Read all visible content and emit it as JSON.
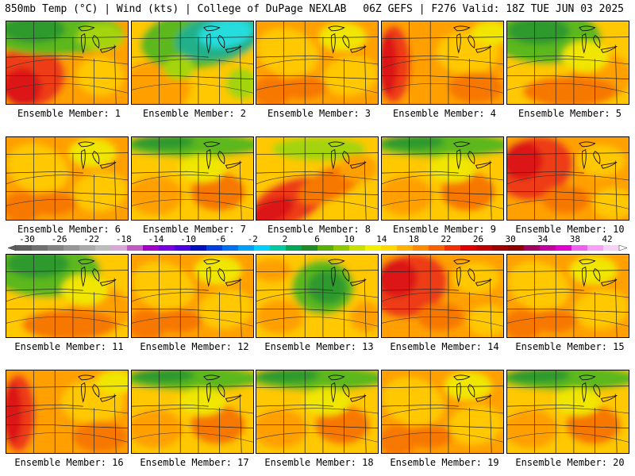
{
  "header": {
    "left": "850mb Temp (°C) | Wind (kts) | College of DuPage NEXLAB",
    "right": "06Z GEFS | F276 Valid: 18Z TUE JUN 03 2025"
  },
  "label_prefix": "Ensemble Member:",
  "members": [
    {
      "number": 1,
      "label": "Ensemble Member: 1",
      "pattern": "hot-west-cool-north"
    },
    {
      "number": 2,
      "label": "Ensemble Member: 2",
      "pattern": "cool-north-cyan"
    },
    {
      "number": 3,
      "label": "Ensemble Member: 3",
      "pattern": "warm-uniform"
    },
    {
      "number": 4,
      "label": "Ensemble Member: 4",
      "pattern": "hot-west-edge"
    },
    {
      "number": 5,
      "label": "Ensemble Member: 5",
      "pattern": "cool-northwest"
    },
    {
      "number": 6,
      "label": "Ensemble Member: 6",
      "pattern": "warm-uniform"
    },
    {
      "number": 7,
      "label": "Ensemble Member: 7",
      "pattern": "warm-green-north"
    },
    {
      "number": 8,
      "label": "Ensemble Member: 8",
      "pattern": "hot-southwest"
    },
    {
      "number": 9,
      "label": "Ensemble Member: 9",
      "pattern": "warm-green-north"
    },
    {
      "number": 10,
      "label": "Ensemble Member: 10",
      "pattern": "hot-west"
    },
    {
      "number": 11,
      "label": "Ensemble Member: 11",
      "pattern": "cool-northwest"
    },
    {
      "number": 12,
      "label": "Ensemble Member: 12",
      "pattern": "warm-uniform"
    },
    {
      "number": 13,
      "label": "Ensemble Member: 13",
      "pattern": "cool-center"
    },
    {
      "number": 14,
      "label": "Ensemble Member: 14",
      "pattern": "hot-west"
    },
    {
      "number": 15,
      "label": "Ensemble Member: 15",
      "pattern": "warm-uniform"
    },
    {
      "number": 16,
      "label": "Ensemble Member: 16",
      "pattern": "hot-west-edge"
    },
    {
      "number": 17,
      "label": "Ensemble Member: 17",
      "pattern": "warm-green-north"
    },
    {
      "number": 18,
      "label": "Ensemble Member: 18",
      "pattern": "warm-green-north"
    },
    {
      "number": 19,
      "label": "Ensemble Member: 19",
      "pattern": "warm-uniform"
    },
    {
      "number": 20,
      "label": "Ensemble Member: 20",
      "pattern": "warm-green-north"
    }
  ],
  "colorbar": {
    "ticks": [
      "-30",
      "-26",
      "-22",
      "-18",
      "-14",
      "-10",
      "-6",
      "-2",
      "2",
      "6",
      "10",
      "14",
      "18",
      "22",
      "26",
      "30",
      "34",
      "38",
      "42"
    ],
    "colors": [
      "#5e5e5e",
      "#707070",
      "#838383",
      "#969696",
      "#a9a9a9",
      "#bcbcbc",
      "#d6a9d6",
      "#c05ac0",
      "#a000c8",
      "#7a00e0",
      "#4b00e0",
      "#0010c0",
      "#0040e0",
      "#0070f0",
      "#00a0f8",
      "#00d0ff",
      "#00c8a0",
      "#00a858",
      "#208c28",
      "#58b008",
      "#90c800",
      "#c8e000",
      "#f0f000",
      "#ffd800",
      "#ffb000",
      "#ff8c00",
      "#f86000",
      "#f03000",
      "#e00000",
      "#c00000",
      "#a00000",
      "#8c0000",
      "#a00060",
      "#c000a0",
      "#e000d0",
      "#f060f0",
      "#f8a0f8",
      "#f8d0f8"
    ]
  },
  "palette": {
    "cyan": "#28dcdc",
    "teal": "#20b08a",
    "darkgreen": "#2e9a2e",
    "green": "#5cb81c",
    "lime": "#a4d40c",
    "yellow": "#f0e600",
    "gold": "#ffc800",
    "orange": "#ffa000",
    "darkorange": "#f77800",
    "red": "#ee3c14",
    "crimson": "#dc1414"
  }
}
